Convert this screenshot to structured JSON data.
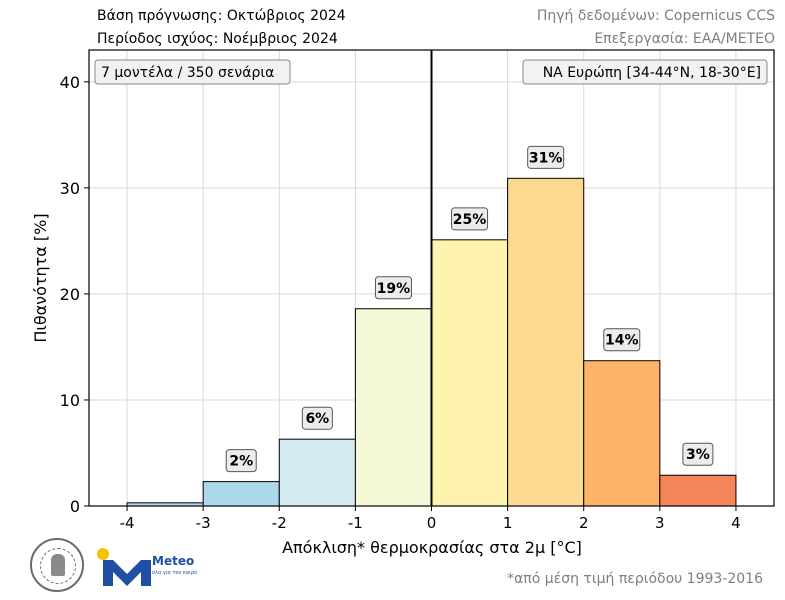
{
  "header": {
    "forecast_base": "Βάση πρόγνωσης: Οκτώβριος 2024",
    "validity_period": "Περίοδος ισχύος: Νοέμβριος 2024",
    "data_source": "Πηγή δεδομένων: Copernicus CCS",
    "processing": "Επεξεργασία: ΕΑΑ/METEO"
  },
  "chart_data": {
    "type": "bar",
    "bins": [
      {
        "from": -4,
        "to": -3,
        "value": 0.3,
        "label": "",
        "color": "#abd9e9"
      },
      {
        "from": -3,
        "to": -2,
        "value": 2.3,
        "label": "2%",
        "color": "#abd9e9"
      },
      {
        "from": -2,
        "to": -1,
        "value": 6.3,
        "label": "6%",
        "color": "#d6ecf3"
      },
      {
        "from": -1,
        "to": 0,
        "value": 18.6,
        "label": "19%",
        "color": "#f4f8d6"
      },
      {
        "from": 0,
        "to": 1,
        "value": 25.1,
        "label": "25%",
        "color": "#fff3b0"
      },
      {
        "from": 1,
        "to": 2,
        "value": 30.9,
        "label": "31%",
        "color": "#fcd890"
      },
      {
        "from": 2,
        "to": 3,
        "value": 13.7,
        "label": "14%",
        "color": "#fdb468"
      },
      {
        "from": 3,
        "to": 4,
        "value": 2.9,
        "label": "3%",
        "color": "#f4845a"
      }
    ],
    "xlabel": "Απόκλιση* θερμοκρασίας στα 2μ [°C]",
    "ylabel": "Πιθανότητα [%]",
    "xlim": [
      -4.5,
      4.5
    ],
    "ylim": [
      0,
      43
    ],
    "xticks": [
      -4,
      -3,
      -2,
      -1,
      0,
      1,
      2,
      3,
      4
    ],
    "yticks": [
      0,
      10,
      20,
      30,
      40
    ],
    "grid": true,
    "zero_line": true,
    "annotation_left": "7 μοντέλα / 350 σενάρια",
    "annotation_right": "ΝΑ Ευρώπη [34-44°N, 18-30°E]"
  },
  "footer": {
    "footnote": "*από μέση τιμή περιόδου 1993-2016",
    "brand": "Meteo",
    "brand_tagline": "όλα για τον καιρό"
  }
}
